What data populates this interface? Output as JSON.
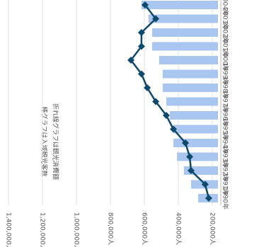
{
  "chart_data": {
    "type": "bar-line",
    "legend": [
      "棒グラフは入域観光客数",
      "折れ線グラフは観光消費額"
    ],
    "categories": [
      "1990年",
      "1991年",
      "1992年",
      "1993年",
      "1994年",
      "1995年",
      "1996年",
      "1997年",
      "1998年",
      "1999年",
      "2000年",
      "2001年",
      "2002年",
      "2003年",
      "2004年"
    ],
    "series": [
      {
        "name": "入域観光客数",
        "kind": "bar",
        "color": "#a9c6f0",
        "values": [
          283000,
          325000,
          367000,
          408000,
          429000,
          429000,
          450000,
          471000,
          492000,
          492000,
          513000,
          554000,
          554000,
          575000,
          617000
        ]
      },
      {
        "name": "観光消費額",
        "kind": "line",
        "color": "#0e4a6e",
        "values": [
          221000,
          242000,
          325000,
          333000,
          358000,
          429000,
          471000,
          533000,
          583000,
          617000,
          679000,
          617000,
          617000,
          533000,
          596000
        ]
      }
    ],
    "ylim": [
      200000,
      1400000
    ],
    "yticks": [
      {
        "value": 200000,
        "label": "200,000人"
      },
      {
        "value": 400000,
        "label": "400,000人"
      },
      {
        "value": 600000,
        "label": "600,000人"
      },
      {
        "value": 800000,
        "label": "800,000人"
      },
      {
        "value": 1000000,
        "label": "1,000,000人"
      },
      {
        "value": 1200000,
        "label": "1,200,000人"
      },
      {
        "value": 1400000,
        "label": "1,400,000人"
      }
    ],
    "grid": true
  }
}
